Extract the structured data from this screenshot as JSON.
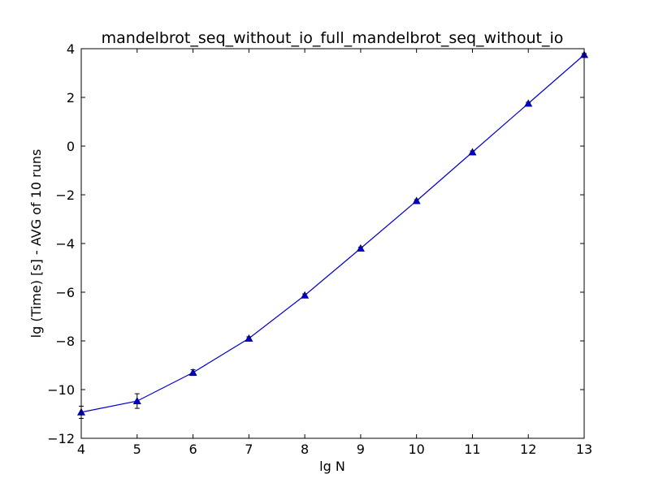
{
  "chart_data": {
    "type": "line",
    "title": "mandelbrot_seq_without_io_full_mandelbrot_seq_without_io",
    "xlabel": "lg N",
    "ylabel": "lg (Time) [s] - AVG of 10 runs",
    "xlim": [
      4,
      13
    ],
    "ylim": [
      -12,
      4
    ],
    "xticks": [
      4,
      5,
      6,
      7,
      8,
      9,
      10,
      11,
      12,
      13
    ],
    "yticks": [
      -12,
      -10,
      -8,
      -6,
      -4,
      -2,
      0,
      2,
      4
    ],
    "xtick_labels": [
      "4",
      "5",
      "6",
      "7",
      "8",
      "9",
      "10",
      "11",
      "12",
      "13"
    ],
    "ytick_labels": [
      "−12",
      "−10",
      "−8",
      "−6",
      "−4",
      "−2",
      "0",
      "2",
      "4"
    ],
    "grid": false,
    "legend": "none",
    "series": [
      {
        "color": "#0000cc",
        "marker": "triangle",
        "x": [
          4,
          5,
          6,
          7,
          8,
          9,
          10,
          11,
          12,
          13
        ],
        "y": [
          -10.93,
          -10.47,
          -9.3,
          -7.9,
          -6.13,
          -4.2,
          -2.25,
          -0.25,
          1.75,
          3.75
        ],
        "error": [
          0.25,
          0.3,
          0.12,
          0.07,
          0.06,
          0.05,
          0.05,
          0.05,
          0.05,
          0.05
        ]
      }
    ]
  }
}
